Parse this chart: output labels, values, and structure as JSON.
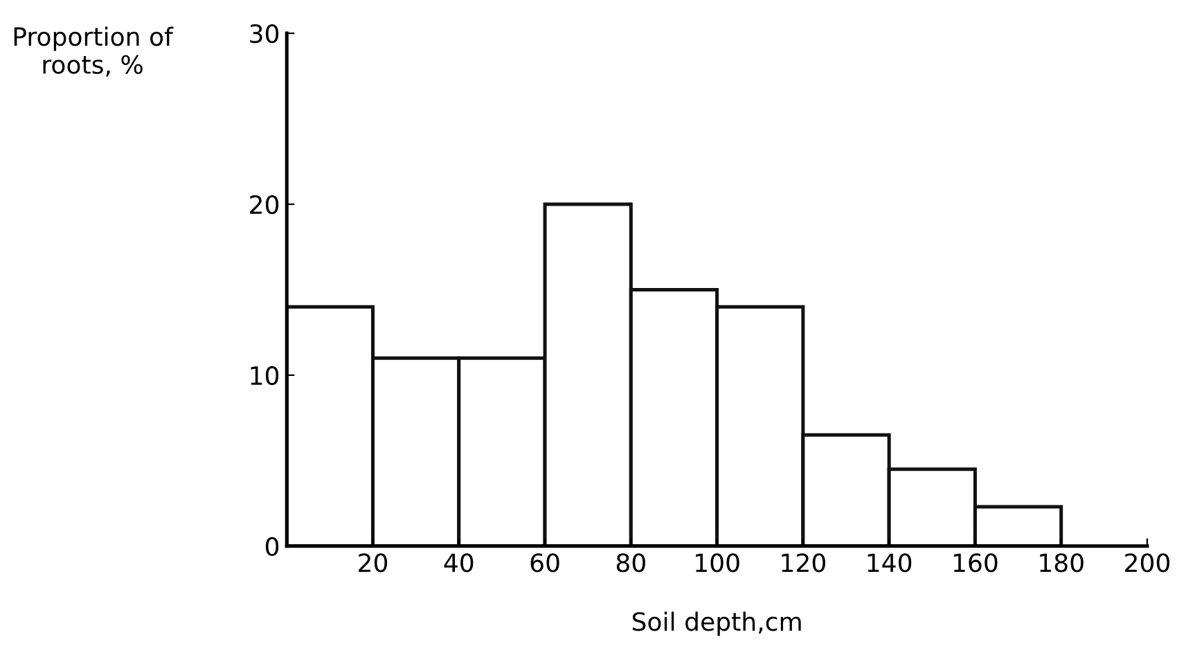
{
  "chart_data": {
    "type": "histogram",
    "xlabel": "Soil depth,cm",
    "ylabel": "Proportion of\nroots, %",
    "bins": [
      0,
      20,
      40,
      60,
      80,
      100,
      120,
      140,
      160,
      180
    ],
    "values": [
      14,
      11,
      11,
      20,
      15,
      14,
      6.5,
      4.5,
      2.3
    ],
    "color": "#ffffff",
    "xlim": [
      0,
      200
    ],
    "xticks": [
      20,
      40,
      60,
      80,
      100,
      120,
      140,
      160,
      180,
      200
    ],
    "ylim": [
      0,
      30
    ],
    "yticks": [
      0,
      10,
      20,
      30
    ],
    "grid": false
  }
}
